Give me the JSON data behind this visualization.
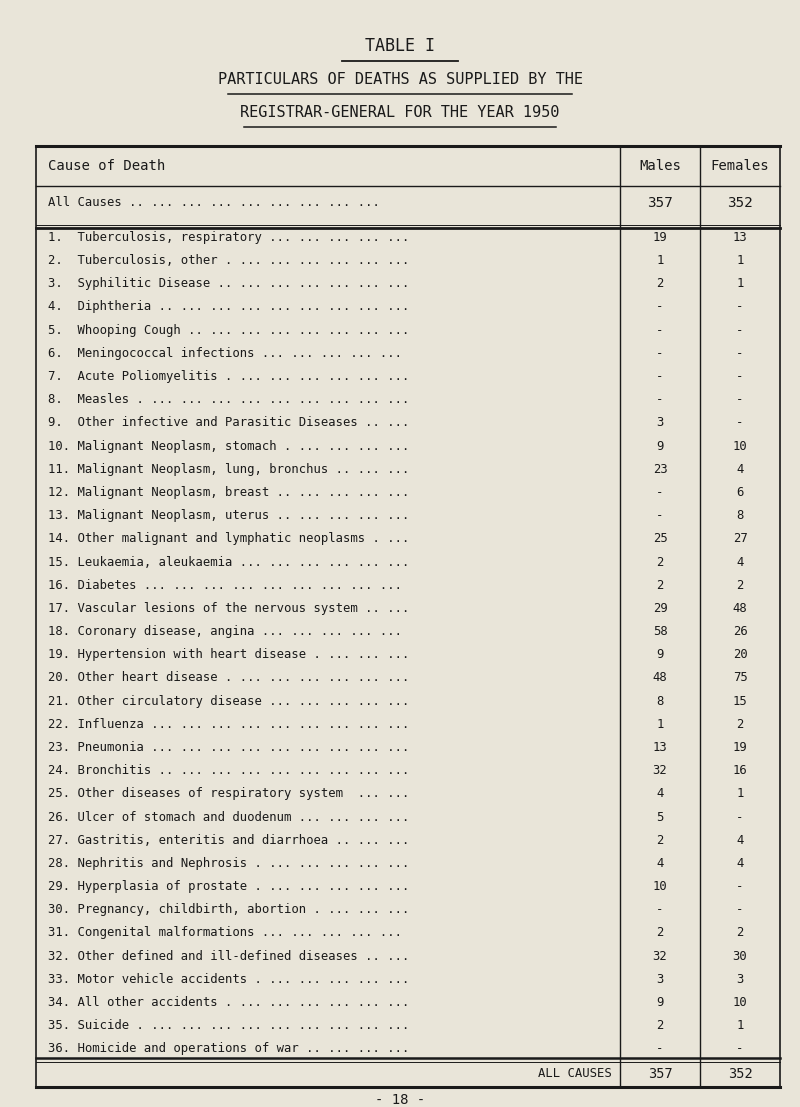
{
  "title1": "TABLE I",
  "title2": "PARTICULARS OF DEATHS AS SUPPLIED BY THE",
  "title3": "REGISTRAR-GENERAL FOR THE YEAR 1950",
  "col_header": [
    "Cause of Death",
    "Males",
    "Females"
  ],
  "all_causes_top": [
    "All Causes .. ... ... ... ... ... ... ... ...",
    "357",
    "352"
  ],
  "rows": [
    [
      "1.  Tuberculosis, respiratory ... ... ... ... ...",
      "19",
      "13"
    ],
    [
      "2.  Tuberculosis, other . ... ... ... ... ... ...",
      "1",
      "1"
    ],
    [
      "3.  Syphilitic Disease .. ... ... ... ... ... ...",
      "2",
      "1"
    ],
    [
      "4.  Diphtheria .. ... ... ... ... ... ... ... ...",
      "-",
      "-"
    ],
    [
      "5.  Whooping Cough .. ... ... ... ... ... ... ...",
      "-",
      "-"
    ],
    [
      "6.  Meningococcal infections ... ... ... ... ...",
      "-",
      "-"
    ],
    [
      "7.  Acute Poliomyelitis . ... ... ... ... ... ...",
      "-",
      "-"
    ],
    [
      "8.  Measles . ... ... ... ... ... ... ... ... ...",
      "-",
      "-"
    ],
    [
      "9.  Other infective and Parasitic Diseases .. ...",
      "3",
      "-"
    ],
    [
      "10. Malignant Neoplasm, stomach . ... ... ... ...",
      "9",
      "10"
    ],
    [
      "11. Malignant Neoplasm, lung, bronchus .. ... ...",
      "23",
      "4"
    ],
    [
      "12. Malignant Neoplasm, breast .. ... ... ... ...",
      "-",
      "6"
    ],
    [
      "13. Malignant Neoplasm, uterus .. ... ... ... ...",
      "-",
      "8"
    ],
    [
      "14. Other malignant and lymphatic neoplasms . ...",
      "25",
      "27"
    ],
    [
      "15. Leukaemia, aleukaemia ... ... ... ... ... ...",
      "2",
      "4"
    ],
    [
      "16. Diabetes ... ... ... ... ... ... ... ... ...",
      "2",
      "2"
    ],
    [
      "17. Vascular lesions of the nervous system .. ...",
      "29",
      "48"
    ],
    [
      "18. Coronary disease, angina ... ... ... ... ...",
      "58",
      "26"
    ],
    [
      "19. Hypertension with heart disease . ... ... ...",
      "9",
      "20"
    ],
    [
      "20. Other heart disease . ... ... ... ... ... ...",
      "48",
      "75"
    ],
    [
      "21. Other circulatory disease ... ... ... ... ...",
      "8",
      "15"
    ],
    [
      "22. Influenza ... ... ... ... ... ... ... ... ...",
      "1",
      "2"
    ],
    [
      "23. Pneumonia ... ... ... ... ... ... ... ... ...",
      "13",
      "19"
    ],
    [
      "24. Bronchitis .. ... ... ... ... ... ... ... ...",
      "32",
      "16"
    ],
    [
      "25. Other diseases of respiratory system  ... ...",
      "4",
      "1"
    ],
    [
      "26. Ulcer of stomach and duodenum ... ... ... ...",
      "5",
      "-"
    ],
    [
      "27. Gastritis, enteritis and diarrhoea .. ... ...",
      "2",
      "4"
    ],
    [
      "28. Nephritis and Nephrosis . ... ... ... ... ...",
      "4",
      "4"
    ],
    [
      "29. Hyperplasia of prostate . ... ... ... ... ...",
      "10",
      "-"
    ],
    [
      "30. Pregnancy, childbirth, abortion . ... ... ...",
      "-",
      "-"
    ],
    [
      "31. Congenital malformations ... ... ... ... ...",
      "2",
      "2"
    ],
    [
      "32. Other defined and ill-defined diseases .. ...",
      "32",
      "30"
    ],
    [
      "33. Motor vehicle accidents . ... ... ... ... ...",
      "3",
      "3"
    ],
    [
      "34. All other accidents . ... ... ... ... ... ...",
      "9",
      "10"
    ],
    [
      "35. Suicide . ... ... ... ... ... ... ... ... ...",
      "2",
      "1"
    ],
    [
      "36. Homicide and operations of war .. ... ... ...",
      "-",
      "-"
    ]
  ],
  "all_causes_bottom": [
    "ALL CAUSES",
    "357",
    "352"
  ],
  "footer": "- 18 -",
  "bg_color": "#e9e5d9",
  "text_color": "#1a1a1a",
  "font_family": "monospace",
  "title1_fontsize": 12,
  "title2_fontsize": 11,
  "title3_fontsize": 11,
  "header_fontsize": 10,
  "row_fontsize": 8.8,
  "tl": 0.045,
  "tr": 0.975,
  "c2x": 0.775,
  "c3x": 0.875
}
